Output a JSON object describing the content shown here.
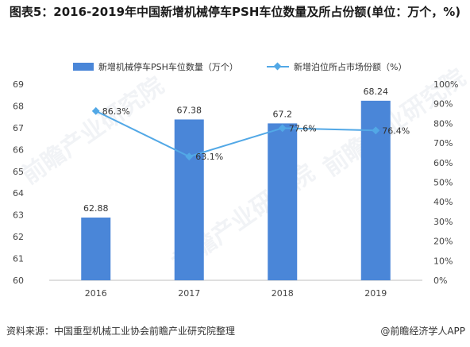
{
  "title": "图表5：2016-2019年中国新增机械停车PSH车位数量及所占份额(单位：万个，%)",
  "legend": {
    "bar_label": "新增机械停车PSH车位数量（万个）",
    "line_label": "新增泊位所占市场份额（%）"
  },
  "footer": {
    "source": "资料来源：中国重型机械工业协会前瞻产业研究院整理",
    "brand": "@前瞻经济学人APP"
  },
  "watermark": "前瞻产业研究院",
  "colors": {
    "bar": "#4a86d8",
    "line": "#52a8e6"
  },
  "chart_data": {
    "type": "bar",
    "categories": [
      "2016",
      "2017",
      "2018",
      "2019"
    ],
    "series": [
      {
        "name": "新增机械停车PSH车位数量（万个）",
        "type": "bar",
        "axis": "left",
        "values": [
          62.88,
          67.38,
          67.2,
          68.24
        ],
        "labels": [
          "62.88",
          "67.38",
          "67.2",
          "68.24"
        ]
      },
      {
        "name": "新增泊位所占市场份额（%）",
        "type": "line",
        "axis": "right",
        "values": [
          86.3,
          63.1,
          77.6,
          76.4
        ],
        "labels": [
          "86.3%",
          "63.1%",
          "77.6%",
          "76.4%"
        ]
      }
    ],
    "ylim_left": [
      60,
      69
    ],
    "yticks_left": [
      "60",
      "61",
      "62",
      "63",
      "64",
      "65",
      "66",
      "67",
      "68",
      "69"
    ],
    "ylim_right": [
      0,
      100
    ],
    "yticks_right": [
      "0%",
      "10%",
      "20%",
      "30%",
      "40%",
      "50%",
      "60%",
      "70%",
      "80%",
      "90%",
      "100%"
    ],
    "grid": false,
    "legend_position": "top"
  }
}
